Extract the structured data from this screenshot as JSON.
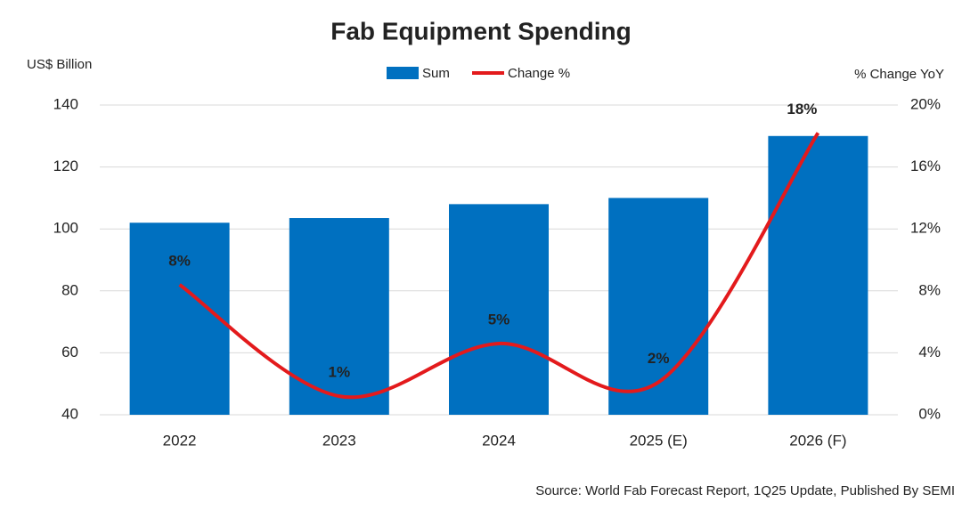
{
  "chart_data": {
    "type": "bar",
    "title": "Fab Equipment Spending",
    "ylabel": "US$ Billion",
    "y2label": "% Change YoY",
    "categories": [
      "2022",
      "2023",
      "2024",
      "2025 (E)",
      "2026 (F)"
    ],
    "series": [
      {
        "name": "Sum",
        "type": "bar",
        "color": "#0070c0",
        "values": [
          102,
          103.5,
          108,
          110,
          130
        ]
      },
      {
        "name": "Change %",
        "type": "line",
        "axis": "y2",
        "color": "#e31a1c",
        "values": [
          8.4,
          1.2,
          4.6,
          2.1,
          18.2
        ],
        "value_labels": [
          "8%",
          "1%",
          "5%",
          "2%",
          "18%"
        ]
      }
    ],
    "ylim": [
      40,
      140
    ],
    "yticks": [
      40,
      60,
      80,
      100,
      120,
      140
    ],
    "y2lim": [
      0,
      20
    ],
    "y2ticks": [
      {
        "value": 0,
        "label": "0%"
      },
      {
        "value": 4,
        "label": "4%"
      },
      {
        "value": 8,
        "label": "8%"
      },
      {
        "value": 12,
        "label": "12%"
      },
      {
        "value": 16,
        "label": "16%"
      },
      {
        "value": 20,
        "label": "20%"
      }
    ],
    "grid": true,
    "legend": "top",
    "source": "Source: World Fab Forecast Report, 1Q25 Update, Published By SEMI"
  }
}
